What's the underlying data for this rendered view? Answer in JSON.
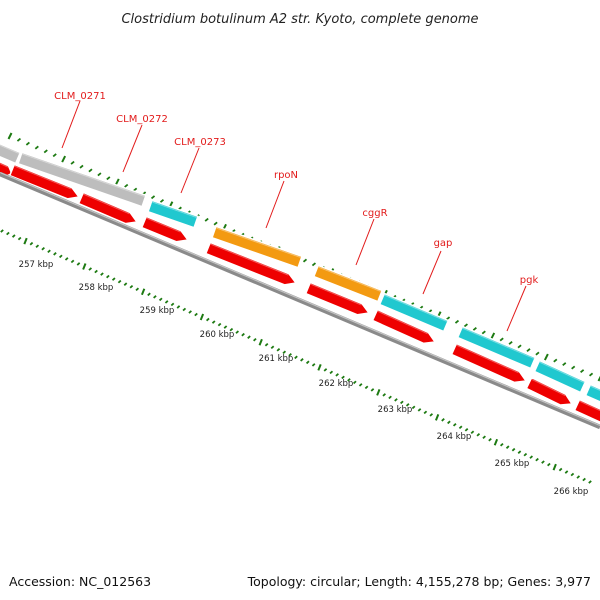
{
  "title": "Clostridium botulinum A2 str. Kyoto, complete genome",
  "footer": {
    "accession": "Accession: NC_012563",
    "topology": "Topology: circular; Length: 4,155,278 bp; Genes: 3,977"
  },
  "colors": {
    "gene_label": "#e21b1b",
    "cds_red": "#ee0000",
    "gray_gene": "#bdbdbd",
    "cyan_gene": "#20c8cf",
    "orange_gene": "#f39a11",
    "backbone": "#7a7a7a",
    "tick_green": "#1d7a12"
  },
  "gene_labels": [
    "CLM_0271",
    "CLM_0272",
    "CLM_0273",
    "rpoN",
    "cggR",
    "gap",
    "pgk"
  ],
  "kbp_labels": [
    "257 kbp",
    "258 kbp",
    "259 kbp",
    "260 kbp",
    "261 kbp",
    "262 kbp",
    "263 kbp",
    "264 kbp",
    "265 kbp",
    "266 kbp"
  ]
}
